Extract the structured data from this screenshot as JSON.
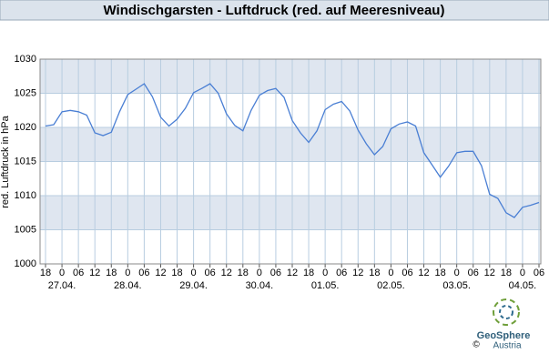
{
  "chart_data": {
    "type": "line",
    "title": "Windischgarsten - Luftdruck (red. auf Meeresniveau)",
    "y_label": "red. Luftdruck in hPa",
    "categories": [
      "18",
      null,
      "0",
      null,
      "06",
      null,
      "12",
      null,
      "18",
      null,
      "0",
      null,
      "06",
      null,
      "12",
      null,
      "18",
      null,
      "0",
      null,
      "06",
      null,
      "12",
      null,
      "18",
      null,
      "0",
      null,
      "06",
      null,
      "12",
      null,
      "18",
      null,
      "0",
      null,
      "06",
      null,
      "12",
      null,
      "18",
      null,
      "0",
      null,
      "06",
      null,
      "12",
      null,
      "18",
      null,
      "0",
      null,
      "06",
      null,
      "12",
      null,
      "18",
      null,
      "0",
      null,
      "06"
    ],
    "date_labels": [
      null,
      null,
      "27.04.",
      null,
      null,
      null,
      null,
      null,
      null,
      null,
      "28.04.",
      null,
      null,
      null,
      null,
      null,
      null,
      null,
      "29.04.",
      null,
      null,
      null,
      null,
      null,
      null,
      null,
      "30.04.",
      null,
      null,
      null,
      null,
      null,
      null,
      null,
      "01.05.",
      null,
      null,
      null,
      null,
      null,
      null,
      null,
      "02.05.",
      null,
      null,
      null,
      null,
      null,
      null,
      null,
      "03.05.",
      null,
      null,
      null,
      null,
      null,
      null,
      null,
      "04.05.",
      null,
      null
    ],
    "series": [
      {
        "color": "#4a7fd4",
        "values": [
          1020.2,
          1020.4,
          1022.3,
          1022.5,
          1022.3,
          1021.8,
          1019.2,
          1018.8,
          1019.3,
          1022.3,
          1024.8,
          1025.6,
          1026.4,
          1024.5,
          1021.5,
          1020.2,
          1021.2,
          1022.8,
          1025.1,
          1025.7,
          1026.4,
          1025,
          1022,
          1020.3,
          1019.5,
          1022.5,
          1024.7,
          1025.4,
          1025.7,
          1024.4,
          1021,
          1019.2,
          1017.8,
          1019.5,
          1022.6,
          1023.4,
          1023.8,
          1022.4,
          1019.6,
          1017.6,
          1016,
          1017.2,
          1019.8,
          1020.5,
          1020.8,
          1020.2,
          1016.3,
          1014.5,
          1012.7,
          1014.3,
          1016.3,
          1016.5,
          1016.5,
          1014.4,
          1010.2,
          1009.6,
          1007.5,
          1006.8,
          1008.3,
          1008.6,
          1009
        ]
      }
    ],
    "ylim": [
      1000,
      1030
    ],
    "yticks": [
      1000,
      1005,
      1010,
      1015,
      1020,
      1025,
      1030
    ],
    "grid": true,
    "band_color": "#dfe6f0",
    "logo": {
      "name": "GeoSphere",
      "sub": "Austria",
      "copyright": "©"
    }
  }
}
